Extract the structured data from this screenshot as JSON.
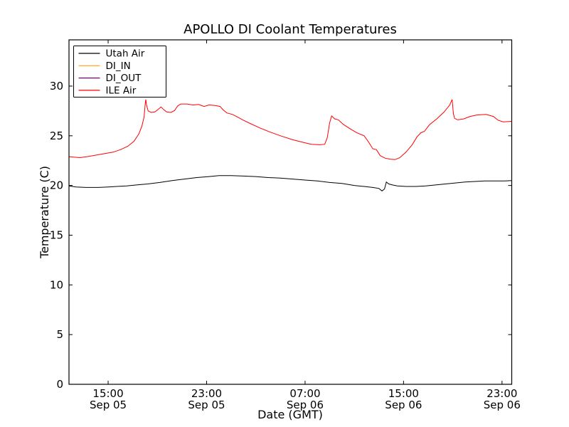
{
  "figure": {
    "background": "#ffffff",
    "frame_color": "#000000"
  },
  "chart_data": {
    "type": "line",
    "title": "APOLLO DI Coolant Temperatures",
    "xlabel": "Date (GMT)",
    "ylabel": "Temperature (C)",
    "grid": false,
    "legend_position": "upper-left",
    "x_unit": "hours since Sep 05 00:00 GMT",
    "xlim": [
      11.82,
      47.79
    ],
    "ylim": [
      0,
      34.65
    ],
    "yticks": [
      0,
      5,
      10,
      15,
      20,
      25,
      30
    ],
    "xticks": [
      {
        "t": 15,
        "time": "15:00",
        "date": "Sep 05"
      },
      {
        "t": 23,
        "time": "23:00",
        "date": "Sep 05"
      },
      {
        "t": 31,
        "time": "07:00",
        "date": "Sep 06"
      },
      {
        "t": 39,
        "time": "15:00",
        "date": "Sep 06"
      },
      {
        "t": 47,
        "time": "23:00",
        "date": "Sep 06"
      }
    ],
    "series": [
      {
        "name": "Utah Air",
        "color": "#000000",
        "points": [
          [
            11.82,
            19.95
          ],
          [
            12.4,
            19.85
          ],
          [
            13.2,
            19.8
          ],
          [
            14.2,
            19.8
          ],
          [
            15.0,
            19.85
          ],
          [
            15.7,
            19.9
          ],
          [
            16.5,
            19.95
          ],
          [
            17.3,
            20.05
          ],
          [
            18.2,
            20.15
          ],
          [
            19.2,
            20.3
          ],
          [
            20.2,
            20.5
          ],
          [
            21.2,
            20.65
          ],
          [
            22.2,
            20.8
          ],
          [
            23.2,
            20.9
          ],
          [
            24.0,
            21.0
          ],
          [
            25.0,
            21.0
          ],
          [
            26.0,
            20.95
          ],
          [
            27.0,
            20.9
          ],
          [
            28.0,
            20.8
          ],
          [
            29.0,
            20.75
          ],
          [
            30.0,
            20.65
          ],
          [
            31.0,
            20.55
          ],
          [
            32.0,
            20.45
          ],
          [
            33.0,
            20.3
          ],
          [
            34.0,
            20.2
          ],
          [
            35.0,
            20.0
          ],
          [
            35.8,
            19.9
          ],
          [
            36.5,
            19.8
          ],
          [
            37.0,
            19.7
          ],
          [
            37.25,
            19.45
          ],
          [
            37.45,
            19.65
          ],
          [
            37.6,
            20.35
          ],
          [
            37.8,
            20.15
          ],
          [
            38.1,
            20.05
          ],
          [
            38.5,
            19.95
          ],
          [
            39.2,
            19.9
          ],
          [
            40.0,
            19.9
          ],
          [
            40.8,
            19.95
          ],
          [
            41.6,
            20.05
          ],
          [
            42.4,
            20.15
          ],
          [
            43.2,
            20.25
          ],
          [
            44.0,
            20.35
          ],
          [
            44.8,
            20.4
          ],
          [
            45.6,
            20.45
          ],
          [
            46.4,
            20.45
          ],
          [
            47.2,
            20.45
          ],
          [
            47.79,
            20.5
          ]
        ]
      },
      {
        "name": "DI_IN",
        "color": "#ffa500",
        "points": []
      },
      {
        "name": "DI_OUT",
        "color": "#800080",
        "points": []
      },
      {
        "name": "ILE Air",
        "color": "#ff0000",
        "points": [
          [
            11.82,
            22.9
          ],
          [
            12.2,
            22.85
          ],
          [
            12.7,
            22.8
          ],
          [
            13.3,
            22.9
          ],
          [
            14.0,
            23.05
          ],
          [
            14.7,
            23.2
          ],
          [
            15.4,
            23.35
          ],
          [
            16.0,
            23.6
          ],
          [
            16.6,
            23.95
          ],
          [
            17.1,
            24.45
          ],
          [
            17.5,
            25.2
          ],
          [
            17.75,
            26.0
          ],
          [
            17.92,
            26.9
          ],
          [
            18.02,
            28.3
          ],
          [
            18.06,
            28.65
          ],
          [
            18.12,
            28.1
          ],
          [
            18.25,
            27.5
          ],
          [
            18.5,
            27.35
          ],
          [
            18.8,
            27.4
          ],
          [
            19.1,
            27.7
          ],
          [
            19.3,
            27.9
          ],
          [
            19.5,
            27.65
          ],
          [
            19.75,
            27.4
          ],
          [
            20.1,
            27.35
          ],
          [
            20.4,
            27.55
          ],
          [
            20.65,
            28.0
          ],
          [
            20.9,
            28.2
          ],
          [
            21.4,
            28.2
          ],
          [
            21.9,
            28.1
          ],
          [
            22.35,
            28.15
          ],
          [
            22.8,
            27.95
          ],
          [
            23.2,
            28.1
          ],
          [
            23.7,
            28.05
          ],
          [
            24.1,
            27.95
          ],
          [
            24.35,
            27.6
          ],
          [
            24.65,
            27.3
          ],
          [
            25.1,
            27.15
          ],
          [
            25.5,
            26.9
          ],
          [
            26.0,
            26.55
          ],
          [
            26.6,
            26.2
          ],
          [
            27.3,
            25.8
          ],
          [
            28.1,
            25.4
          ],
          [
            29.0,
            25.0
          ],
          [
            30.0,
            24.6
          ],
          [
            30.8,
            24.35
          ],
          [
            31.5,
            24.15
          ],
          [
            32.2,
            24.1
          ],
          [
            32.6,
            24.15
          ],
          [
            32.8,
            24.8
          ],
          [
            33.0,
            26.3
          ],
          [
            33.16,
            27.0
          ],
          [
            33.4,
            26.7
          ],
          [
            33.7,
            26.6
          ],
          [
            34.1,
            26.15
          ],
          [
            34.6,
            25.75
          ],
          [
            35.2,
            25.3
          ],
          [
            35.8,
            25.0
          ],
          [
            36.2,
            24.3
          ],
          [
            36.5,
            23.7
          ],
          [
            36.8,
            23.6
          ],
          [
            37.1,
            23.0
          ],
          [
            37.5,
            22.75
          ],
          [
            37.9,
            22.65
          ],
          [
            38.3,
            22.6
          ],
          [
            38.7,
            22.8
          ],
          [
            39.2,
            23.35
          ],
          [
            39.7,
            24.1
          ],
          [
            40.1,
            24.9
          ],
          [
            40.4,
            25.3
          ],
          [
            40.7,
            25.45
          ],
          [
            41.1,
            26.1
          ],
          [
            41.7,
            26.7
          ],
          [
            42.3,
            27.4
          ],
          [
            42.75,
            28.1
          ],
          [
            42.95,
            28.65
          ],
          [
            43.05,
            27.2
          ],
          [
            43.15,
            26.75
          ],
          [
            43.4,
            26.6
          ],
          [
            43.9,
            26.7
          ],
          [
            44.4,
            26.95
          ],
          [
            45.0,
            27.1
          ],
          [
            45.7,
            27.15
          ],
          [
            46.3,
            26.95
          ],
          [
            46.7,
            26.55
          ],
          [
            47.1,
            26.4
          ],
          [
            47.79,
            26.45
          ]
        ]
      }
    ]
  }
}
